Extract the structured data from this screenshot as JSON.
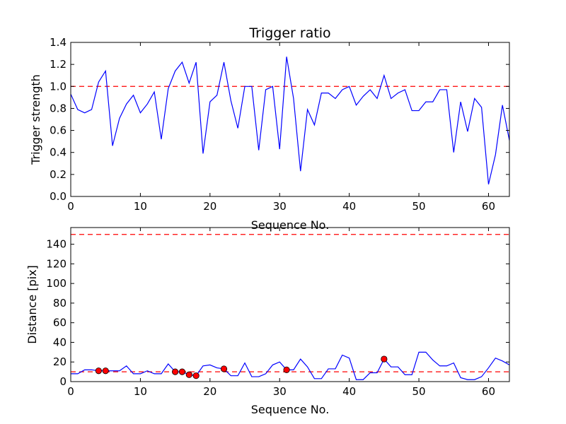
{
  "figure": {
    "background": "#ffffff",
    "line_color": "#0000ff",
    "threshold_color": "#ff0000",
    "marker_color": "#ff0000"
  },
  "chart_data": [
    {
      "type": "line",
      "title": "Trigger ratio",
      "xlabel": "Sequence No.",
      "ylabel": "Trigger strength",
      "xlim": [
        0,
        63
      ],
      "ylim": [
        0,
        1.4
      ],
      "xticks": [
        0,
        10,
        20,
        30,
        40,
        50,
        60
      ],
      "yticks": [
        0.0,
        0.2,
        0.4,
        0.6,
        0.8,
        1.0,
        1.2,
        1.4
      ],
      "ytick_labels": [
        "0.0",
        "0.2",
        "0.4",
        "0.6",
        "0.8",
        "1.0",
        "1.2",
        "1.4"
      ],
      "grid": false,
      "series": [
        {
          "name": "trigger strength",
          "x": [
            0,
            1,
            2,
            3,
            4,
            5,
            6,
            7,
            8,
            9,
            10,
            11,
            12,
            13,
            14,
            15,
            16,
            17,
            18,
            19,
            20,
            21,
            22,
            23,
            24,
            25,
            26,
            27,
            28,
            29,
            30,
            31,
            32,
            33,
            34,
            35,
            36,
            37,
            38,
            39,
            40,
            41,
            42,
            43,
            44,
            45,
            46,
            47,
            48,
            49,
            50,
            51,
            52,
            53,
            54,
            55,
            56,
            57,
            58,
            59,
            60,
            61,
            62,
            63
          ],
          "values": [
            0.93,
            0.79,
            0.76,
            0.79,
            1.04,
            1.14,
            0.46,
            0.71,
            0.84,
            0.92,
            0.76,
            0.84,
            0.95,
            0.52,
            0.98,
            1.14,
            1.22,
            1.03,
            1.22,
            0.39,
            0.86,
            0.92,
            1.22,
            0.87,
            0.62,
            1.0,
            1.0,
            0.42,
            0.97,
            1.0,
            0.43,
            1.27,
            0.89,
            0.23,
            0.79,
            0.65,
            0.94,
            0.94,
            0.89,
            0.97,
            1.0,
            0.83,
            0.91,
            0.97,
            0.89,
            1.1,
            0.89,
            0.94,
            0.97,
            0.78,
            0.78,
            0.86,
            0.86,
            0.97,
            0.97,
            0.4,
            0.86,
            0.59,
            0.89,
            0.81,
            0.11,
            0.38,
            0.83,
            0.51
          ]
        }
      ],
      "thresholds": [
        1.0
      ]
    },
    {
      "type": "line",
      "title": "",
      "xlabel": "Sequence No.",
      "ylabel": "Distance [pix]",
      "xlim": [
        0,
        63
      ],
      "ylim": [
        0,
        157
      ],
      "xticks": [
        0,
        10,
        20,
        30,
        40,
        50,
        60
      ],
      "yticks": [
        0,
        20,
        40,
        60,
        80,
        100,
        120,
        140
      ],
      "ytick_labels": [
        "0",
        "20",
        "40",
        "60",
        "80",
        "100",
        "120",
        "140"
      ],
      "grid": false,
      "series": [
        {
          "name": "distance",
          "x": [
            0,
            1,
            2,
            3,
            4,
            5,
            6,
            7,
            8,
            9,
            10,
            11,
            12,
            13,
            14,
            15,
            16,
            17,
            18,
            19,
            20,
            21,
            22,
            23,
            24,
            25,
            26,
            27,
            28,
            29,
            30,
            31,
            32,
            33,
            34,
            35,
            36,
            37,
            38,
            39,
            40,
            41,
            42,
            43,
            44,
            45,
            46,
            47,
            48,
            49,
            50,
            51,
            52,
            53,
            54,
            55,
            56,
            57,
            58,
            59,
            60,
            61,
            62,
            63
          ],
          "values": [
            8,
            8,
            12,
            12,
            11,
            11,
            11,
            11,
            16,
            8,
            8,
            11,
            8,
            8,
            18,
            10,
            10,
            7,
            6,
            16,
            17,
            14,
            13,
            6,
            6,
            19,
            5,
            5,
            8,
            17,
            20,
            12,
            12,
            23,
            15,
            3,
            3,
            13,
            13,
            27,
            24,
            2,
            2,
            9,
            9,
            23,
            15,
            15,
            7,
            7,
            30,
            30,
            22,
            16,
            16,
            19,
            4,
            2,
            2,
            5,
            14,
            24,
            21,
            17
          ],
          "markers": {
            "x": [
              4,
              5,
              15,
              16,
              17,
              18,
              22,
              31,
              45
            ],
            "values": [
              11,
              11,
              10,
              10,
              7,
              6,
              13,
              12,
              23
            ]
          }
        }
      ],
      "thresholds": [
        150,
        10
      ]
    }
  ]
}
